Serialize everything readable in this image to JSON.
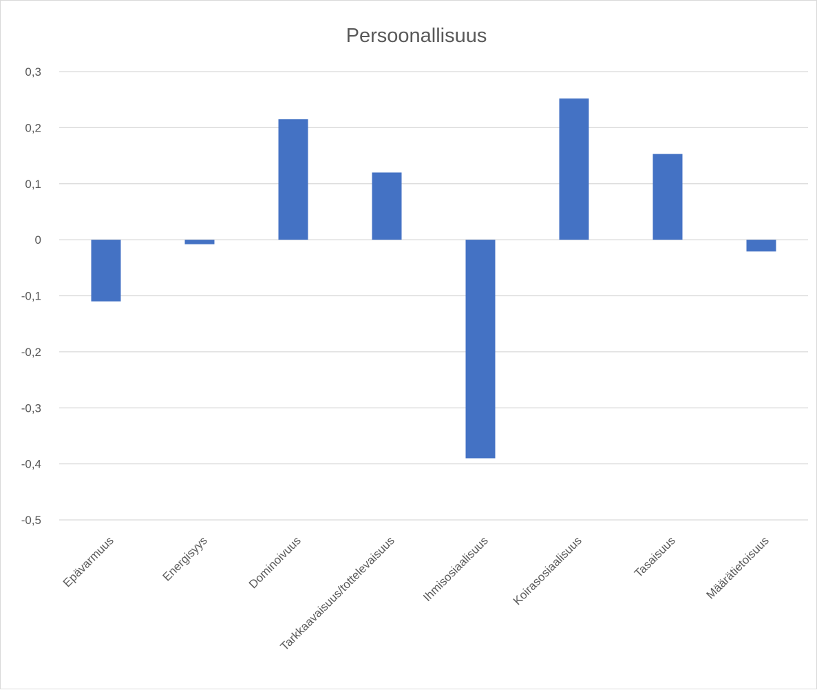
{
  "chart_data": {
    "type": "bar",
    "title": "Persoonallisuus",
    "xlabel": "",
    "ylabel": "",
    "categories": [
      "Epävarmuus",
      "Energisyys",
      "Dominoivuus",
      "Tarkkaavaisuus/tottelevaisuus",
      "Ihmisosiaalisuus",
      "Koirasosiaalisuus",
      "Tasaisuus",
      "Määrätietoisuus"
    ],
    "values": [
      -0.11,
      -0.008,
      0.215,
      0.12,
      -0.39,
      0.252,
      0.153,
      -0.021
    ],
    "ylim": [
      -0.5,
      0.3
    ],
    "yticks": [
      0.3,
      0.2,
      0.1,
      0,
      -0.1,
      -0.2,
      -0.3,
      -0.4,
      -0.5
    ],
    "ytick_labels": [
      "0,3",
      "0,2",
      "0,1",
      "0",
      "-0,1",
      "-0,2",
      "-0,3",
      "-0,4",
      "-0,5"
    ],
    "grid": true,
    "legend": "none",
    "colors": {
      "bar": "#4472c4",
      "grid": "#d9d9d9",
      "text": "#595959"
    }
  }
}
